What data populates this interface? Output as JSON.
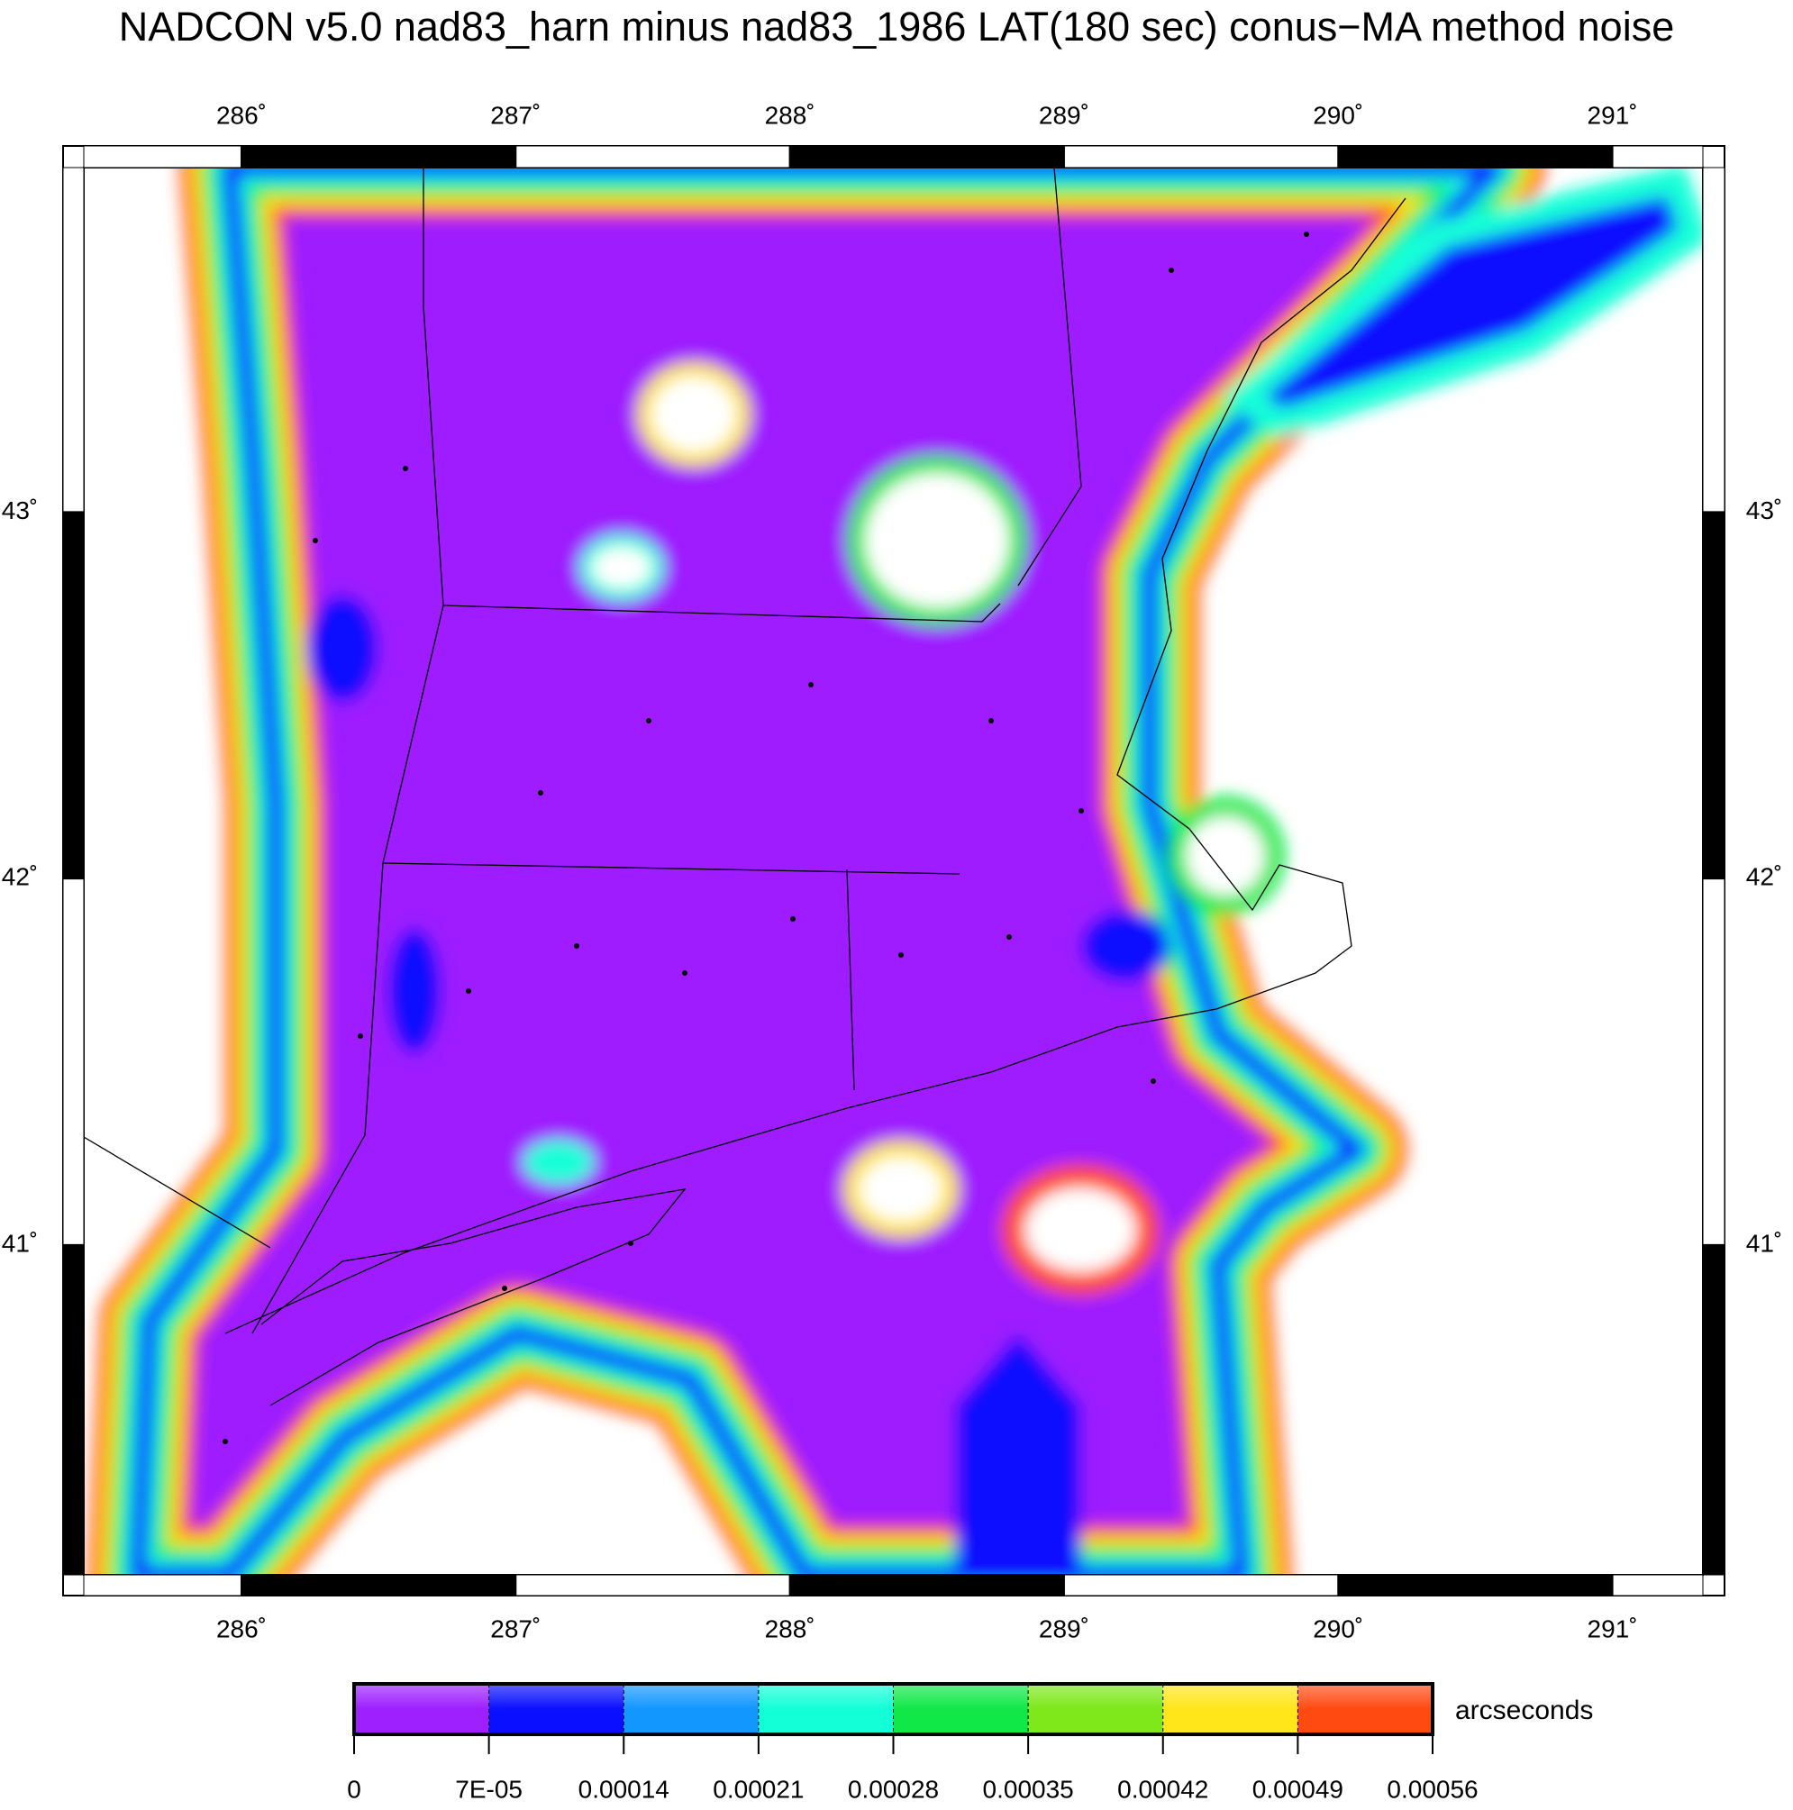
{
  "chart_data": {
    "type": "map",
    "title": "NADCON v5.0 nad83_harn minus nad83_1986 LAT(180 sec) conus−MA method noise",
    "xlim": [
      285.425,
      291.33
    ],
    "ylim": [
      40.1,
      43.94
    ],
    "xticks": [
      {
        "value": 286,
        "label": "286˚"
      },
      {
        "value": 287,
        "label": "287˚"
      },
      {
        "value": 288,
        "label": "288˚"
      },
      {
        "value": 289,
        "label": "289˚"
      },
      {
        "value": 290,
        "label": "290˚"
      },
      {
        "value": 291,
        "label": "291˚"
      }
    ],
    "yticks": [
      {
        "value": 41,
        "label": "41˚"
      },
      {
        "value": 42,
        "label": "42˚"
      },
      {
        "value": 43,
        "label": "43˚"
      }
    ],
    "colorbar": {
      "label": "arcseconds",
      "ticks": [
        0,
        {
          "value": 7e-05,
          "label": "7E-05"
        },
        0.00014,
        0.00021,
        0.00028,
        0.00035,
        0.00042,
        0.00049,
        0.00056
      ],
      "colors": [
        "#9e1fff",
        "#0a10ff",
        "#1296ff",
        "#12ffd8",
        "#10e848",
        "#7ee81a",
        "#ffe61a",
        "#ff4a12"
      ]
    }
  }
}
